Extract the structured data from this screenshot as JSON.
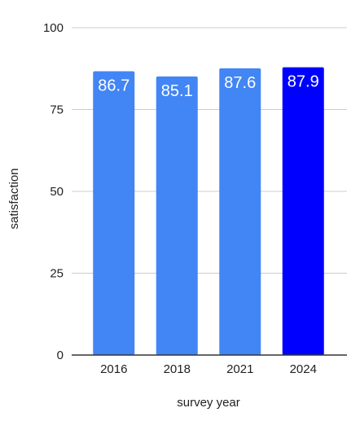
{
  "chart_data": {
    "type": "bar",
    "categories": [
      "2016",
      "2018",
      "2021",
      "2024"
    ],
    "values": [
      86.7,
      85.1,
      87.6,
      87.9
    ],
    "data_labels": [
      "86.7",
      "85.1",
      "87.6",
      "87.9"
    ],
    "xlabel": "survey year",
    "ylabel": "satisfaction",
    "ylim": [
      0,
      100
    ],
    "yticks": [
      0,
      25,
      50,
      75,
      100
    ],
    "ytick_labels": [
      "0",
      "25",
      "50",
      "75",
      "100"
    ],
    "grid": true,
    "legend": "none",
    "colors": {
      "bar": "#4285f4",
      "highlight_bar": "#0000ff",
      "highlight_category": "2024",
      "data_label": "#ffffff",
      "text": "#222222",
      "gridline": "#cccccc",
      "baseline": "#333333"
    }
  }
}
